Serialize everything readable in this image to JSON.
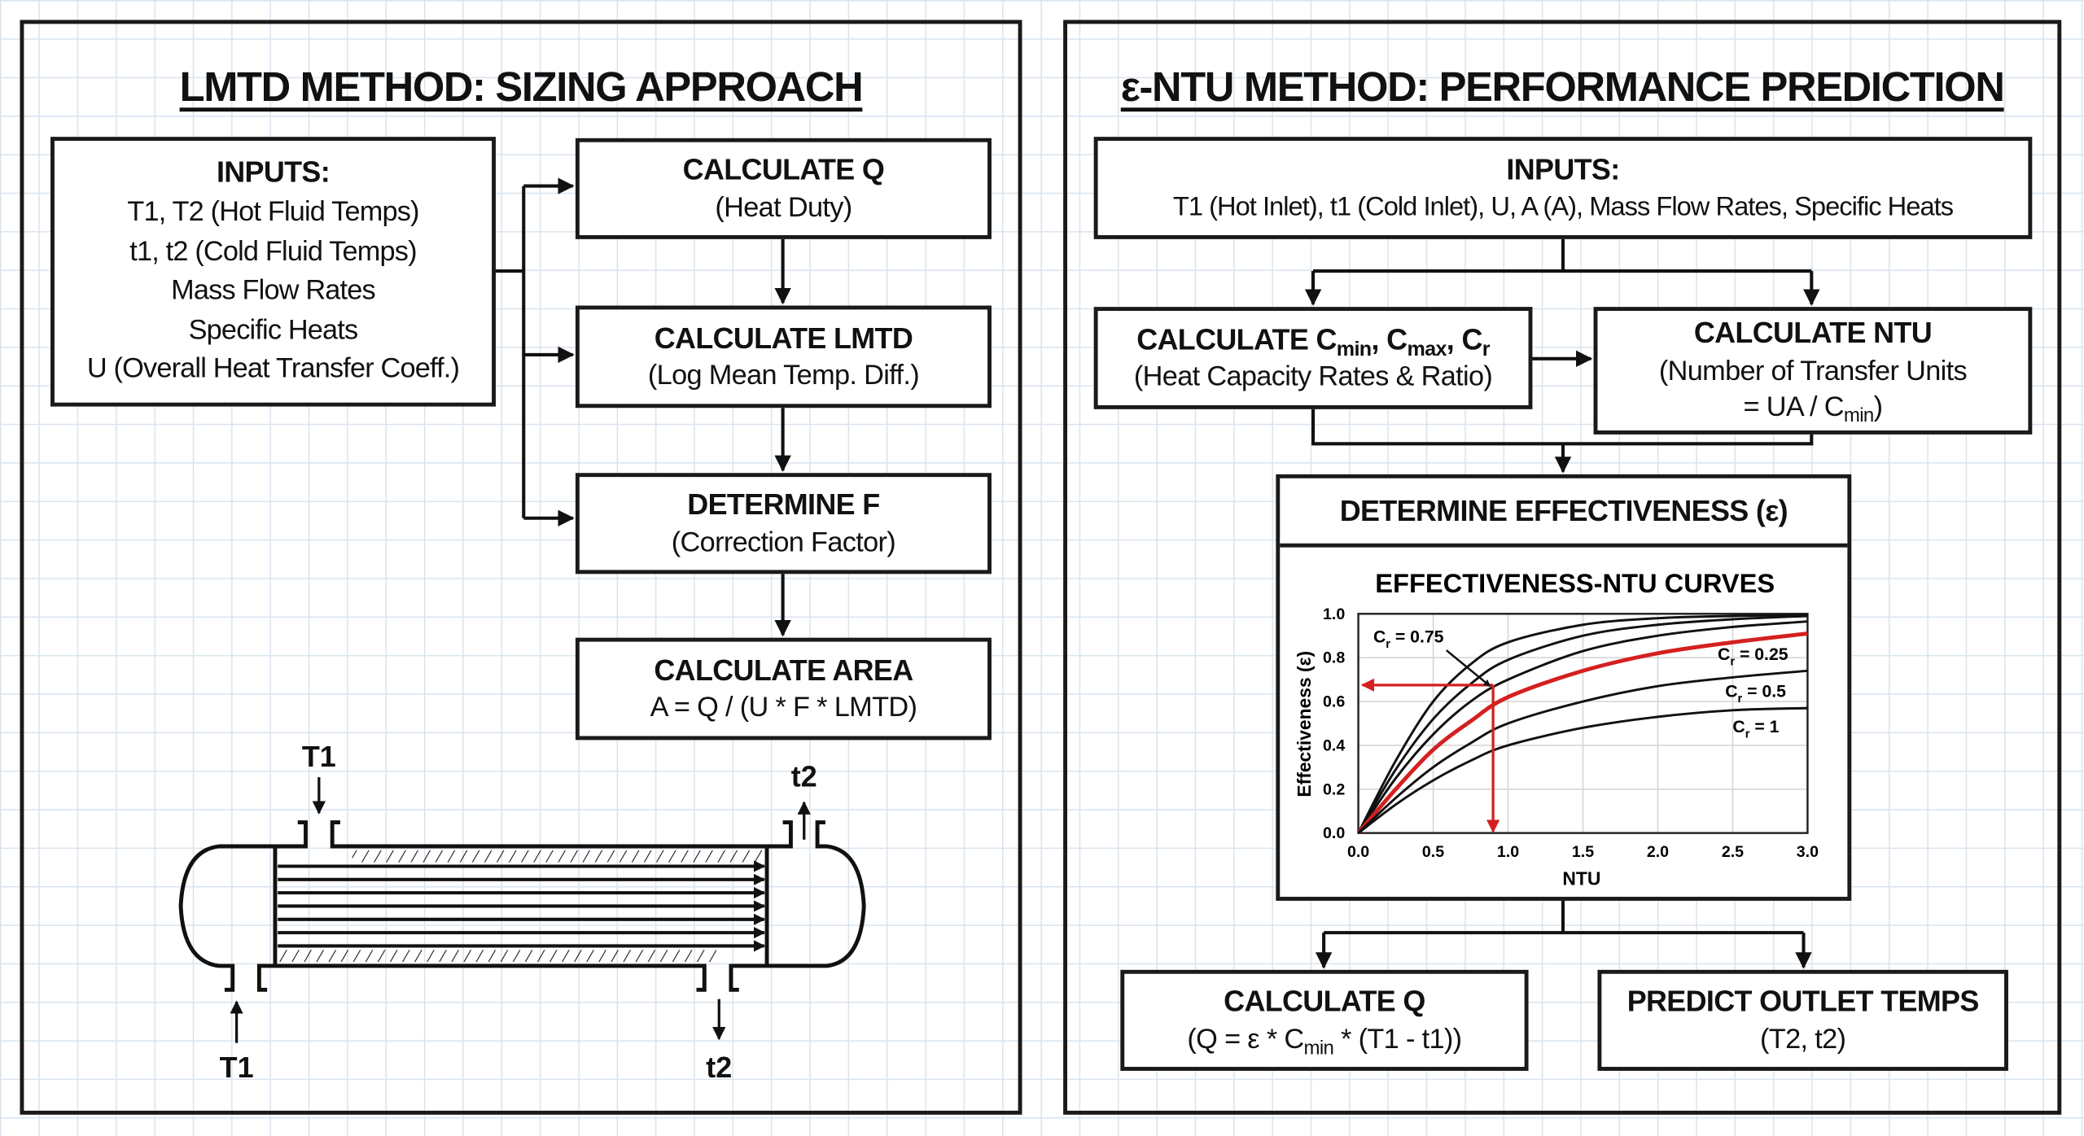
{
  "left": {
    "title": "LMTD METHOD: SIZING APPROACH",
    "inputs": {
      "heading": "INPUTS:",
      "lines": [
        "T1, T2 (Hot Fluid Temps)",
        "t1, t2 (Cold Fluid Temps)",
        "Mass Flow Rates",
        "Specific Heats",
        "U (Overall Heat Transfer Coeff.)"
      ]
    },
    "steps": [
      {
        "title": "CALCULATE Q",
        "subtitle": "(Heat Duty)"
      },
      {
        "title": "CALCULATE LMTD",
        "subtitle": "(Log Mean Temp. Diff.)"
      },
      {
        "title": "DETERMINE F",
        "subtitle": "(Correction Factor)"
      },
      {
        "title": "CALCULATE AREA",
        "subtitle": "A = Q / (U * F * LMTD)"
      }
    ],
    "exchanger": {
      "hot_in_top": "T1",
      "cold_out_top": "t2",
      "hot_in_bottom": "T1",
      "cold_out_bottom": "t2"
    }
  },
  "right": {
    "title": "ε-NTU METHOD: PERFORMANCE PREDICTION",
    "inputs": {
      "heading": "INPUTS:",
      "line": "T1 (Hot Inlet), t1 (Cold Inlet), U, A (A), Mass Flow Rates, Specific Heats"
    },
    "calc_c": {
      "t1": "CALCULATE C",
      "s1": "min",
      "t2": ", C",
      "s2": "max",
      "t3": ", C",
      "s3": "r",
      "subtitle": "(Heat Capacity Rates & Ratio)"
    },
    "calc_ntu": {
      "title": "CALCULATE NTU",
      "line1": "(Number of Transfer Units",
      "line2a": "= UA / C",
      "line2s": "min",
      "line2b": ")"
    },
    "effectiveness": {
      "title": "DETERMINE EFFECTIVENESS (ε)"
    },
    "calc_q": {
      "title": "CALCULATE Q",
      "f1": "(Q = ε * C",
      "fs": "min",
      "f2": " * (T1 - t1))"
    },
    "predict": {
      "title": "PREDICT OUTLET TEMPS",
      "subtitle": "(T2, t2)"
    }
  },
  "chart_data": {
    "type": "line",
    "title": "EFFECTIVENESS-NTU CURVES",
    "xlabel": "NTU",
    "ylabel": "Effectiveness (ε)",
    "xlim": [
      0,
      3
    ],
    "ylim": [
      0,
      1
    ],
    "xticks": [
      "0.0",
      "0.5",
      "1.0",
      "1.5",
      "2.0",
      "2.5",
      "3.0"
    ],
    "yticks": [
      "0.0",
      "0.2",
      "0.4",
      "0.6",
      "0.8",
      "1.0"
    ],
    "grid": true,
    "x": [
      0,
      0.25,
      0.5,
      0.75,
      1,
      1.5,
      2,
      2.5,
      3
    ],
    "series": [
      {
        "name": "curve-1",
        "color": "#111111",
        "values": [
          0,
          0.33,
          0.6,
          0.77,
          0.87,
          0.95,
          0.98,
          0.99,
          0.995
        ]
      },
      {
        "name": "curve-2",
        "color": "#111111",
        "values": [
          0,
          0.29,
          0.52,
          0.68,
          0.79,
          0.9,
          0.95,
          0.975,
          0.99
        ]
      },
      {
        "name": "curve-3",
        "color": "#111111",
        "values": [
          0,
          0.25,
          0.45,
          0.6,
          0.7,
          0.83,
          0.9,
          0.94,
          0.965
        ]
      },
      {
        "name": "highlighted",
        "color": "#d42020",
        "values": [
          0,
          0.2,
          0.38,
          0.51,
          0.62,
          0.74,
          0.82,
          0.87,
          0.91
        ]
      },
      {
        "name": "curve-5",
        "color": "#111111",
        "values": [
          0,
          0.16,
          0.3,
          0.41,
          0.5,
          0.6,
          0.67,
          0.71,
          0.74
        ]
      },
      {
        "name": "curve-6",
        "color": "#111111",
        "values": [
          0,
          0.13,
          0.24,
          0.33,
          0.4,
          0.48,
          0.53,
          0.56,
          0.57
        ]
      }
    ],
    "annotations": [
      {
        "label": "C",
        "sub": "r",
        "text": " = 0.75",
        "x": 0.1,
        "y": 0.87,
        "arrow_to": [
          0.88,
          0.67
        ]
      },
      {
        "label": "C",
        "sub": "r",
        "text": " = 0.25",
        "x": 2.4,
        "y": 0.79
      },
      {
        "label": "C",
        "sub": "r",
        "text": " = 0.5",
        "x": 2.45,
        "y": 0.62
      },
      {
        "label": "C",
        "sub": "r",
        "text": " = 1",
        "x": 2.5,
        "y": 0.46
      }
    ],
    "readout": {
      "ntu": 0.9,
      "effectiveness": 0.675,
      "color": "#d42020"
    }
  }
}
